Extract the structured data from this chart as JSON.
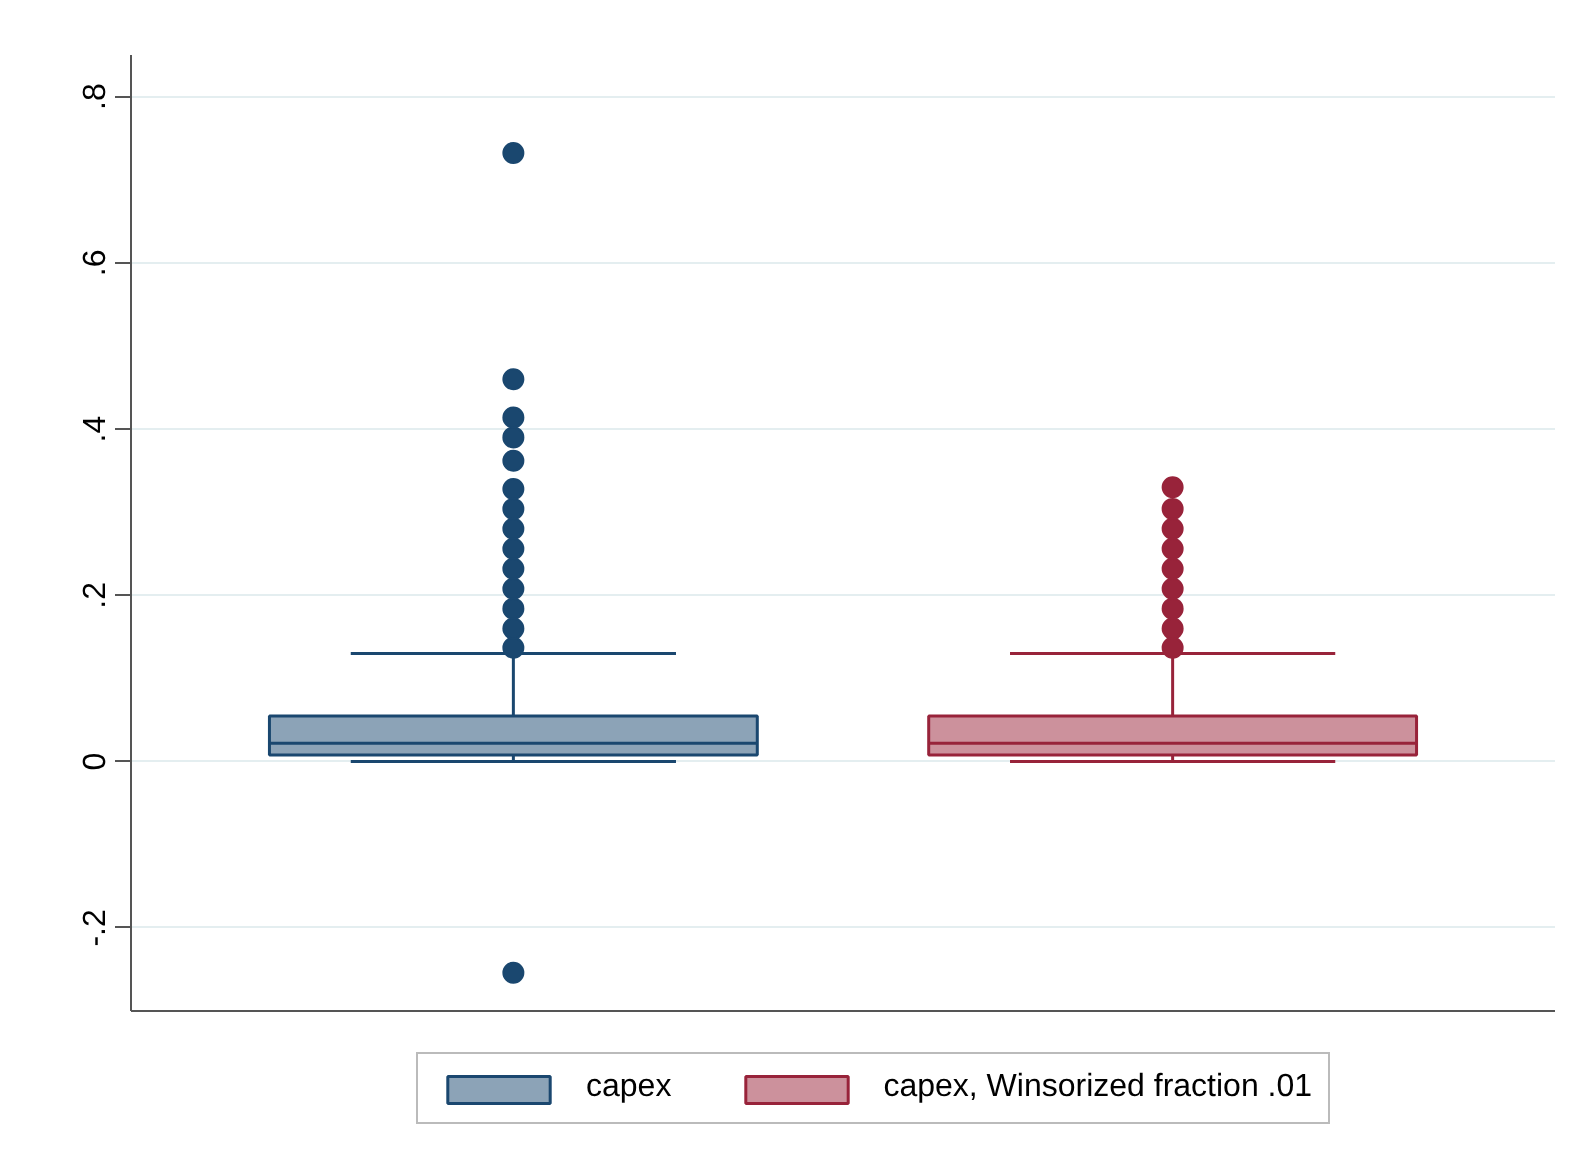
{
  "chart_data": {
    "type": "box",
    "categories": [
      null
    ],
    "ylim": [
      -0.3,
      0.85
    ],
    "yticks": [
      {
        "value": -0.2,
        "label": "-.2"
      },
      0,
      {
        "value": 0.2,
        "label": ".2"
      },
      {
        "value": 0.4,
        "label": ".4"
      },
      {
        "value": 0.6,
        "label": ".6"
      },
      {
        "value": 0.8,
        "label": ".8"
      }
    ],
    "grid": "y",
    "legend": "bottom",
    "tick_labels": "y",
    "series": [
      {
        "name": "capex",
        "color": "#1a476f",
        "boxes": [
          {
            "low": 0,
            "q1": 0.008,
            "median": 0.022,
            "q3": 0.055,
            "high": 0.13,
            "outliers": [
              -0.254,
              0.137,
              0.16,
              0.184,
              0.208,
              0.232,
              0.256,
              0.28,
              0.304,
              0.328,
              0.362,
              0.39,
              0.414,
              0.46,
              0.732
            ]
          }
        ]
      },
      {
        "name": "capex, Winsorized fraction .01",
        "color": "#98233a",
        "boxes": [
          {
            "low": 0,
            "q1": 0.008,
            "median": 0.022,
            "q3": 0.055,
            "high": 0.13,
            "outliers": [
              0.137,
              0.16,
              0.184,
              0.208,
              0.232,
              0.256,
              0.28,
              0.304,
              0.33
            ]
          }
        ]
      }
    ]
  }
}
